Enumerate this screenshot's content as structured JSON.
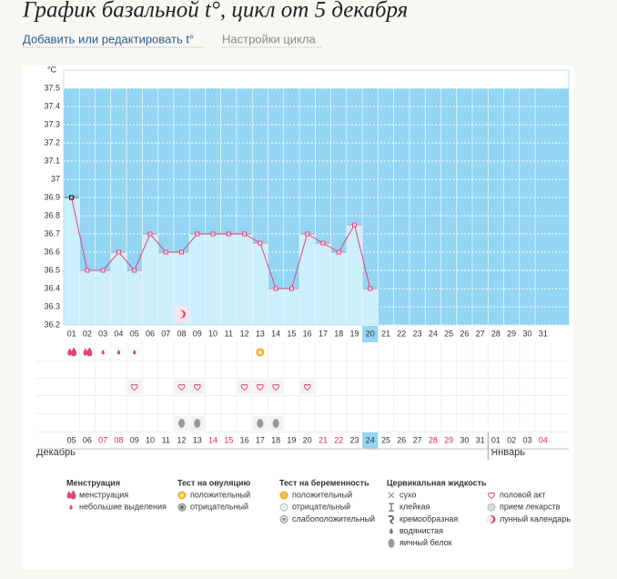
{
  "header": {
    "title": "График базальной t°, цикл от 5 декабря",
    "links": [
      "Добавить или редактировать t°",
      "Настройки цикла"
    ]
  },
  "chart_data": {
    "type": "line",
    "unit_label": "°C",
    "categories": [
      "01",
      "02",
      "03",
      "04",
      "05",
      "06",
      "07",
      "08",
      "09",
      "10",
      "11",
      "12",
      "13",
      "14",
      "15",
      "16",
      "17",
      "18",
      "19",
      "20",
      "21",
      "22",
      "23",
      "24",
      "25",
      "26",
      "27",
      "28",
      "29",
      "30",
      "31"
    ],
    "series": [
      {
        "color": "#e0457a",
        "values": [
          36.9,
          36.5,
          36.5,
          36.6,
          36.5,
          36.7,
          36.6,
          36.6,
          36.7,
          36.7,
          36.7,
          36.7,
          36.65,
          36.4,
          36.4,
          36.7,
          36.65,
          36.6,
          36.75,
          36.4,
          null,
          null,
          null,
          null,
          null,
          null,
          null,
          null,
          null,
          null,
          null
        ]
      }
    ],
    "ylim": [
      36.2,
      37.6
    ],
    "yticks": [
      36.2,
      36.3,
      36.4,
      36.5,
      36.6,
      36.7,
      36.8,
      36.9,
      37,
      37.1,
      37.2,
      37.3,
      37.4,
      37.5
    ],
    "shade_top": 37.5,
    "shade_color": "#93d5f2",
    "bar_color": "#cdeefb",
    "grid": true,
    "highlight": "20",
    "symbols": [
      {
        "kind": "lunar",
        "days": [
          "08"
        ]
      },
      {
        "kind": "menstruation",
        "days": [
          "01",
          "02"
        ]
      },
      {
        "kind": "spotting",
        "days": [
          "03",
          "04",
          "05"
        ]
      },
      {
        "kind": "ovulation_positive",
        "days": [
          "13"
        ]
      },
      {
        "kind": "sex",
        "days": [
          "05",
          "08",
          "09",
          "12",
          "13",
          "14",
          "16"
        ]
      },
      {
        "kind": "egg_white",
        "days": [
          "08",
          "09",
          "13",
          "14"
        ]
      }
    ],
    "dates": [
      {
        "label": "05"
      },
      {
        "label": "06"
      },
      {
        "label": "07",
        "weekend": true
      },
      {
        "label": "08",
        "weekend": true
      },
      {
        "label": "09"
      },
      {
        "label": "10"
      },
      {
        "label": "11"
      },
      {
        "label": "12"
      },
      {
        "label": "13"
      },
      {
        "label": "14",
        "weekend": true
      },
      {
        "label": "15",
        "weekend": true
      },
      {
        "label": "16"
      },
      {
        "label": "17"
      },
      {
        "label": "18"
      },
      {
        "label": "19"
      },
      {
        "label": "20"
      },
      {
        "label": "21",
        "weekend": true
      },
      {
        "label": "22",
        "weekend": true
      },
      {
        "label": "23"
      },
      {
        "label": "24"
      },
      {
        "label": "25"
      },
      {
        "label": "26"
      },
      {
        "label": "27"
      },
      {
        "label": "28",
        "weekend": true
      },
      {
        "label": "29",
        "weekend": true
      },
      {
        "label": "30"
      },
      {
        "label": "31"
      },
      {
        "label": "01"
      },
      {
        "label": "02"
      },
      {
        "label": "03"
      },
      {
        "label": "04",
        "weekend": true
      }
    ],
    "months": [
      {
        "label": "Декабрь",
        "start": 0
      },
      {
        "label": "Январь",
        "start": 27
      }
    ]
  },
  "legend": [
    {
      "title": "Менструация",
      "items": [
        {
          "label": "менструация",
          "icon": "menstruation"
        },
        {
          "label": "небольшие выделения",
          "icon": "spotting"
        }
      ]
    },
    {
      "title": "Тест на овуляцию",
      "items": [
        {
          "label": "положительный",
          "icon": "ovulation_positive"
        },
        {
          "label": "отрицательный",
          "icon": "ovulation_negative"
        }
      ]
    },
    {
      "title": "Тест на беременность",
      "items": [
        {
          "label": "положительный",
          "icon": "pregnancy_positive"
        },
        {
          "label": "отрицательный",
          "icon": "pregnancy_negative"
        },
        {
          "label": "слабоположительный",
          "icon": "pregnancy_faint"
        }
      ]
    },
    {
      "title": "Цервикальная жидкость",
      "items": [
        {
          "label": "сухо",
          "icon": "dry"
        },
        {
          "label": "клейкая",
          "icon": "sticky"
        },
        {
          "label": "кремообразная",
          "icon": "creamy"
        },
        {
          "label": "водянистая",
          "icon": "watery"
        },
        {
          "label": "яичный белок",
          "icon": "egg_white"
        }
      ]
    },
    {
      "items": [
        {
          "label": "половой акт",
          "icon": "sex"
        },
        {
          "label": "прием лекарств",
          "icon": "medicine"
        },
        {
          "label": "лунный календарь",
          "icon": "lunar"
        }
      ]
    }
  ]
}
